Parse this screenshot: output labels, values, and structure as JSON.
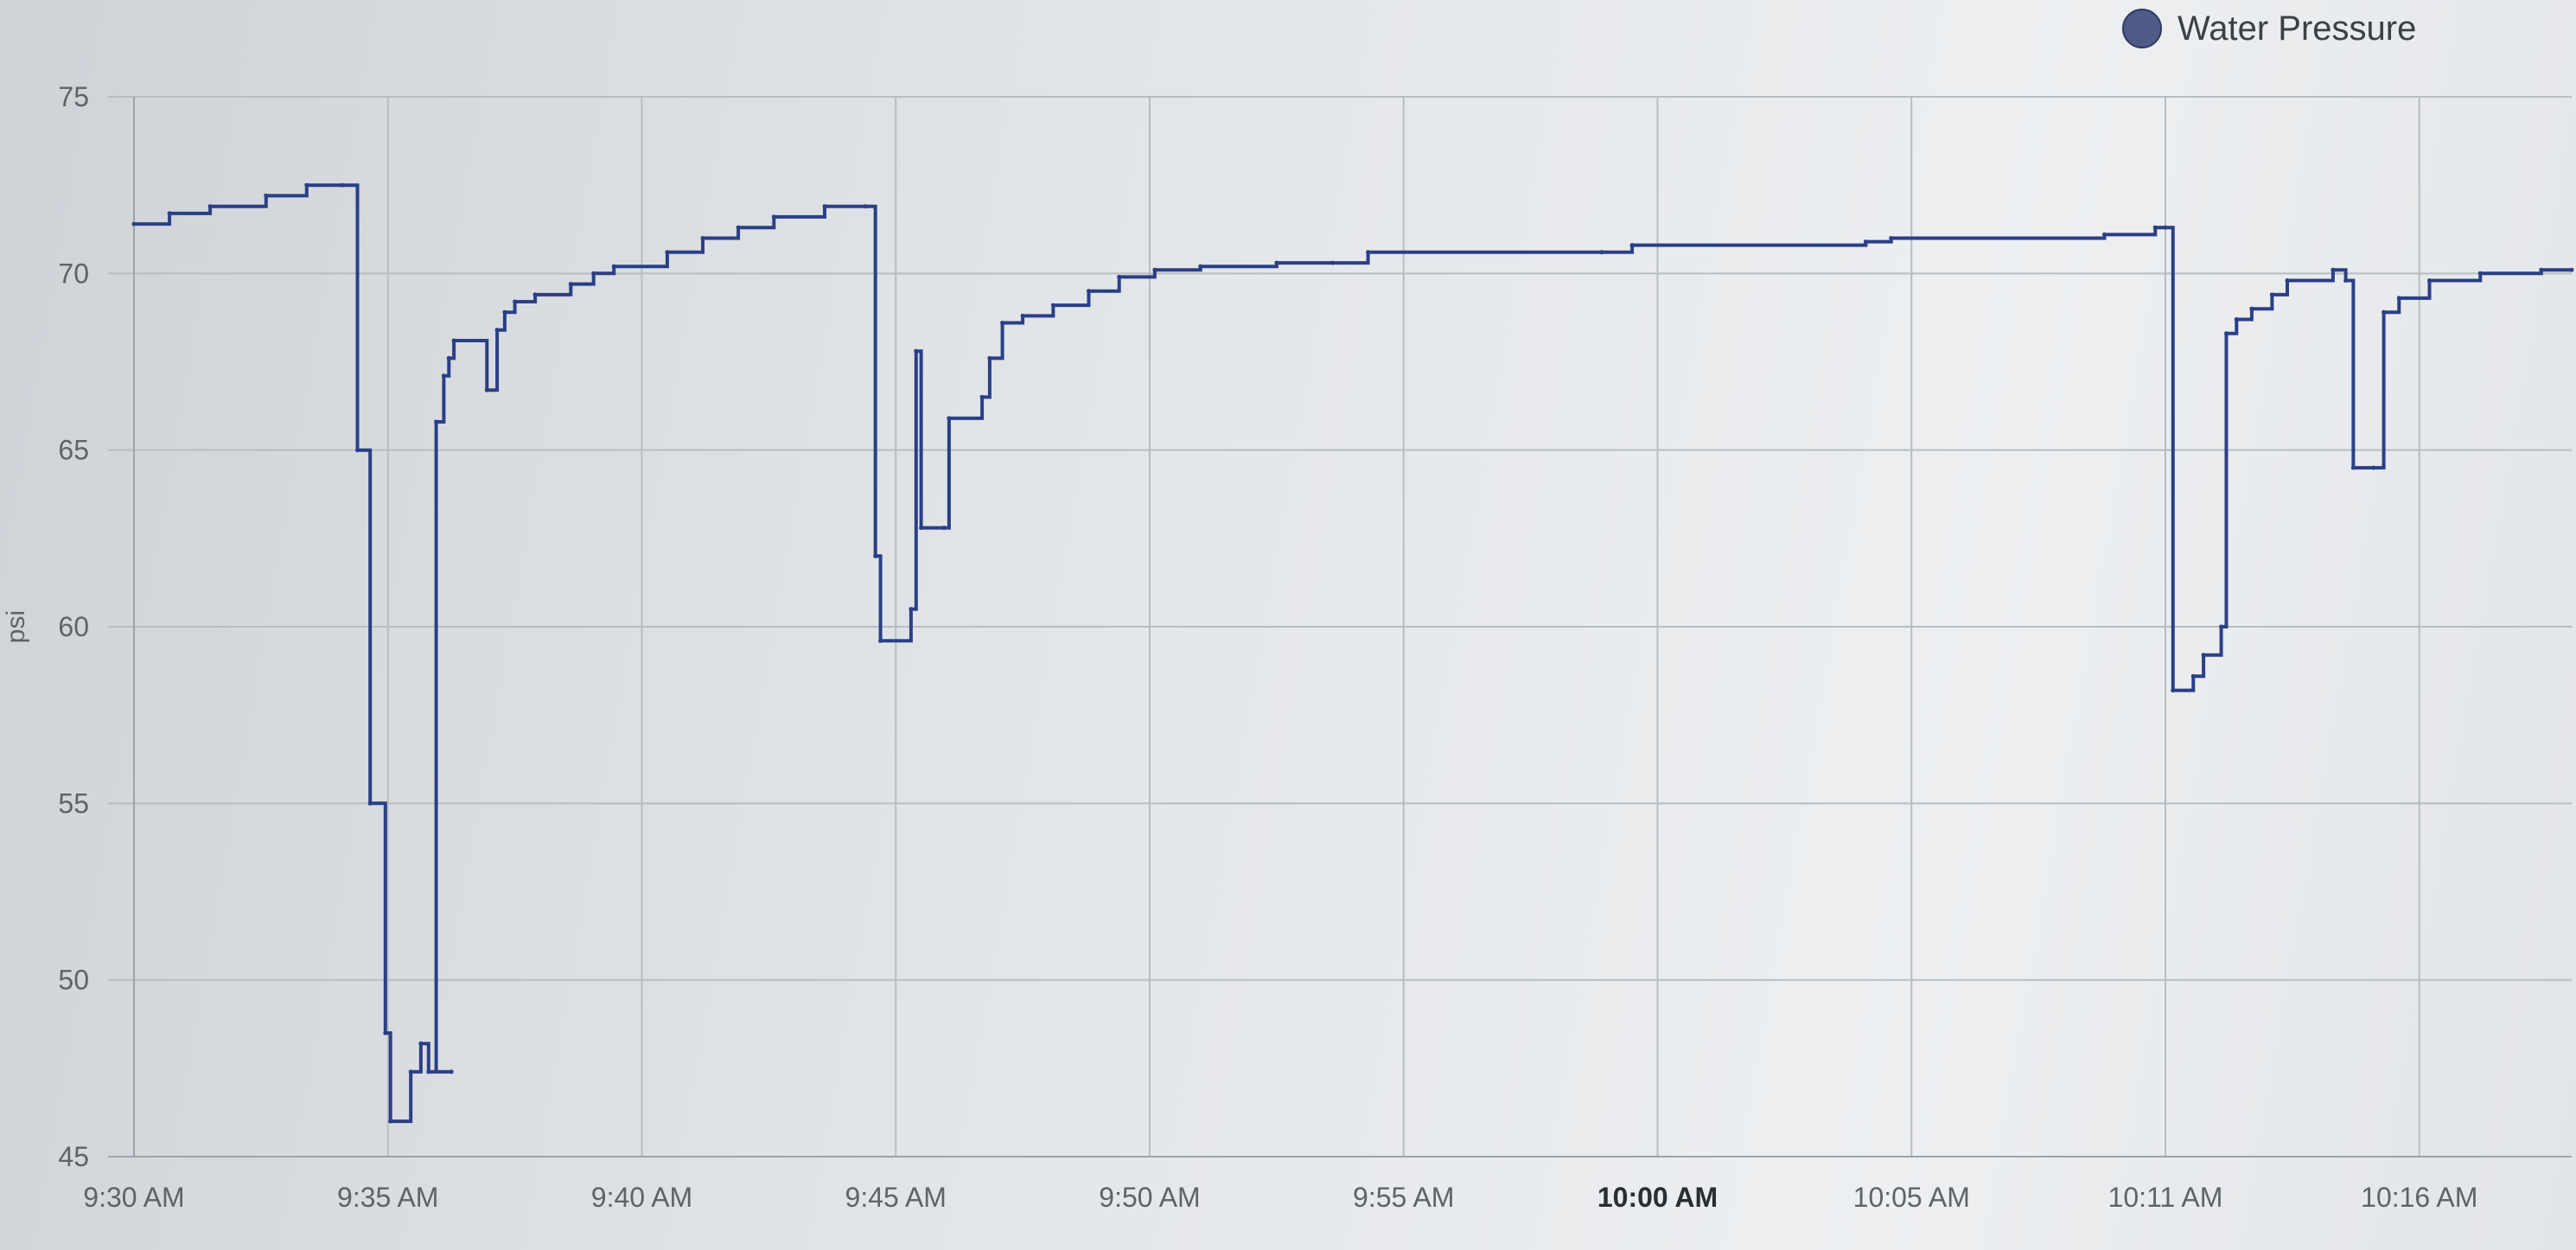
{
  "legend": {
    "series_label": "Water Pressure",
    "swatch_color": "#4d5b86"
  },
  "chart_data": {
    "type": "line",
    "title": "",
    "xlabel": "",
    "ylabel": "psi",
    "ylim": [
      45,
      75
    ],
    "yticks": [
      45,
      50,
      55,
      60,
      65,
      70,
      75
    ],
    "xlim_minutes": [
      0,
      48
    ],
    "xticks": [
      {
        "m": 0,
        "label": "9:30 AM",
        "bold": false
      },
      {
        "m": 5,
        "label": "9:35 AM",
        "bold": false
      },
      {
        "m": 10,
        "label": "9:40 AM",
        "bold": false
      },
      {
        "m": 15,
        "label": "9:45 AM",
        "bold": false
      },
      {
        "m": 20,
        "label": "9:50 AM",
        "bold": false
      },
      {
        "m": 25,
        "label": "9:55 AM",
        "bold": false
      },
      {
        "m": 30,
        "label": "10:00 AM",
        "bold": true
      },
      {
        "m": 35,
        "label": "10:05 AM",
        "bold": false
      },
      {
        "m": 40,
        "label": "10:11 AM",
        "bold": false
      },
      {
        "m": 45,
        "label": "10:16 AM",
        "bold": false
      }
    ],
    "grid": true,
    "legend_position": "top-right",
    "line_color": "#2b3f86",
    "series": [
      {
        "name": "Water Pressure",
        "step": true,
        "points": [
          [
            0.0,
            71.4
          ],
          [
            0.7,
            71.7
          ],
          [
            1.5,
            71.9
          ],
          [
            2.6,
            72.2
          ],
          [
            3.4,
            72.5
          ],
          [
            4.1,
            72.5
          ],
          [
            4.4,
            65.0
          ],
          [
            4.65,
            55.0
          ],
          [
            4.95,
            48.5
          ],
          [
            5.05,
            46.0
          ],
          [
            5.45,
            47.4
          ],
          [
            5.65,
            48.2
          ],
          [
            5.8,
            47.4
          ],
          [
            6.25,
            47.4
          ],
          [
            5.95,
            65.8
          ],
          [
            6.1,
            67.1
          ],
          [
            6.2,
            67.6
          ],
          [
            6.3,
            68.1
          ],
          [
            6.95,
            66.7
          ],
          [
            7.15,
            68.4
          ],
          [
            7.3,
            68.9
          ],
          [
            7.5,
            69.2
          ],
          [
            7.9,
            69.4
          ],
          [
            8.6,
            69.7
          ],
          [
            9.05,
            70.0
          ],
          [
            9.45,
            70.2
          ],
          [
            10.5,
            70.6
          ],
          [
            11.2,
            71.0
          ],
          [
            11.9,
            71.3
          ],
          [
            12.6,
            71.6
          ],
          [
            13.6,
            71.9
          ],
          [
            14.4,
            71.9
          ],
          [
            14.6,
            62.0
          ],
          [
            14.7,
            59.6
          ],
          [
            15.3,
            60.5
          ],
          [
            15.4,
            67.8
          ],
          [
            15.5,
            62.8
          ],
          [
            15.95,
            62.8
          ],
          [
            16.05,
            65.9
          ],
          [
            16.7,
            66.5
          ],
          [
            16.85,
            67.6
          ],
          [
            17.1,
            68.6
          ],
          [
            17.5,
            68.8
          ],
          [
            18.1,
            69.1
          ],
          [
            18.8,
            69.5
          ],
          [
            19.4,
            69.9
          ],
          [
            20.1,
            70.1
          ],
          [
            21.0,
            70.2
          ],
          [
            22.5,
            70.3
          ],
          [
            23.6,
            70.3
          ],
          [
            24.3,
            70.6
          ],
          [
            28.9,
            70.6
          ],
          [
            29.5,
            70.8
          ],
          [
            34.1,
            70.9
          ],
          [
            34.6,
            71.0
          ],
          [
            38.8,
            71.1
          ],
          [
            39.8,
            71.3
          ],
          [
            40.0,
            71.3
          ],
          [
            40.15,
            58.2
          ],
          [
            40.55,
            58.6
          ],
          [
            40.75,
            59.2
          ],
          [
            41.1,
            60.0
          ],
          [
            41.2,
            68.3
          ],
          [
            41.4,
            68.7
          ],
          [
            41.7,
            69.0
          ],
          [
            42.1,
            69.4
          ],
          [
            42.4,
            69.8
          ],
          [
            43.3,
            70.1
          ],
          [
            43.55,
            69.8
          ],
          [
            43.7,
            64.5
          ],
          [
            44.1,
            64.5
          ],
          [
            44.3,
            68.9
          ],
          [
            44.6,
            69.3
          ],
          [
            45.2,
            69.8
          ],
          [
            46.2,
            70.0
          ],
          [
            47.4,
            70.1
          ],
          [
            48.0,
            70.1
          ]
        ]
      }
    ]
  }
}
